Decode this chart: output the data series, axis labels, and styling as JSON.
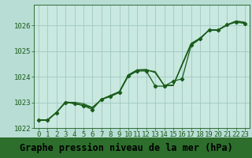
{
  "xlabel": "Graphe pression niveau de la mer (hPa)",
  "background_color": "#b8ddd4",
  "plot_bg_color": "#c8e8e0",
  "grid_color": "#a0c8c0",
  "line_color": "#1a5c1a",
  "marker_color": "#1a5c1a",
  "xlabel_bg_color": "#2d6e2d",
  "xlabel_text_color": "#000000",
  "ylim": [
    1022.0,
    1026.8
  ],
  "xlim": [
    -0.5,
    23.5
  ],
  "yticks": [
    1022,
    1023,
    1024,
    1025,
    1026
  ],
  "xticks": [
    0,
    1,
    2,
    3,
    4,
    5,
    6,
    7,
    8,
    9,
    10,
    11,
    12,
    13,
    14,
    15,
    16,
    17,
    18,
    19,
    20,
    21,
    22,
    23
  ],
  "series1_x": [
    0,
    1,
    2,
    3,
    4,
    5,
    6,
    7,
    8,
    9,
    10,
    11,
    12,
    13,
    14,
    15,
    16,
    17,
    18,
    19,
    20,
    21,
    22,
    23
  ],
  "series1_y": [
    1022.3,
    1022.3,
    1022.6,
    1023.0,
    1023.0,
    1022.95,
    1022.8,
    1023.1,
    1023.25,
    1023.4,
    1024.05,
    1024.25,
    1024.25,
    1024.2,
    1023.65,
    1023.65,
    1024.45,
    1025.25,
    1025.5,
    1025.8,
    1025.8,
    1026.0,
    1026.15,
    1026.1
  ],
  "series2_x": [
    0,
    1,
    2,
    3,
    4,
    5,
    6,
    7,
    8,
    9,
    10,
    11,
    12,
    13,
    14,
    15,
    16,
    17,
    18,
    19,
    20,
    21,
    22,
    23
  ],
  "series2_y": [
    1022.3,
    1022.3,
    1022.6,
    1023.0,
    1022.95,
    1022.9,
    1022.8,
    1023.1,
    1023.25,
    1023.4,
    1024.05,
    1024.25,
    1024.28,
    1024.15,
    1023.65,
    1023.65,
    1024.5,
    1025.3,
    1025.5,
    1025.82,
    1025.82,
    1026.02,
    1026.15,
    1026.1
  ],
  "series3_x": [
    0,
    1,
    2,
    3,
    4,
    5,
    6,
    7,
    8,
    9,
    10,
    11,
    12,
    13,
    14,
    15,
    16,
    17,
    18,
    19,
    20,
    21,
    22,
    23
  ],
  "series3_y": [
    1022.32,
    1022.32,
    1022.62,
    1023.02,
    1022.97,
    1022.87,
    1022.78,
    1023.12,
    1023.27,
    1023.42,
    1024.07,
    1024.27,
    1024.27,
    1024.17,
    1023.67,
    1023.67,
    1024.47,
    1025.27,
    1025.47,
    1025.82,
    1025.82,
    1026.02,
    1026.17,
    1026.12
  ],
  "marked_x": [
    0,
    1,
    2,
    3,
    4,
    5,
    6,
    7,
    8,
    9,
    10,
    11,
    12,
    13,
    14,
    15,
    16,
    17,
    18,
    19,
    20,
    21,
    22,
    23
  ],
  "marked_y": [
    1022.3,
    1022.3,
    1022.6,
    1023.0,
    1022.95,
    1022.87,
    1022.72,
    1023.12,
    1023.22,
    1023.38,
    1024.02,
    1024.22,
    1024.22,
    1023.63,
    1023.63,
    1023.82,
    1023.92,
    1025.22,
    1025.47,
    1025.82,
    1025.82,
    1026.02,
    1026.12,
    1026.07
  ],
  "xlabel_fontsize": 8.5,
  "tick_fontsize": 6.5,
  "ytick_fontsize": 6.5
}
